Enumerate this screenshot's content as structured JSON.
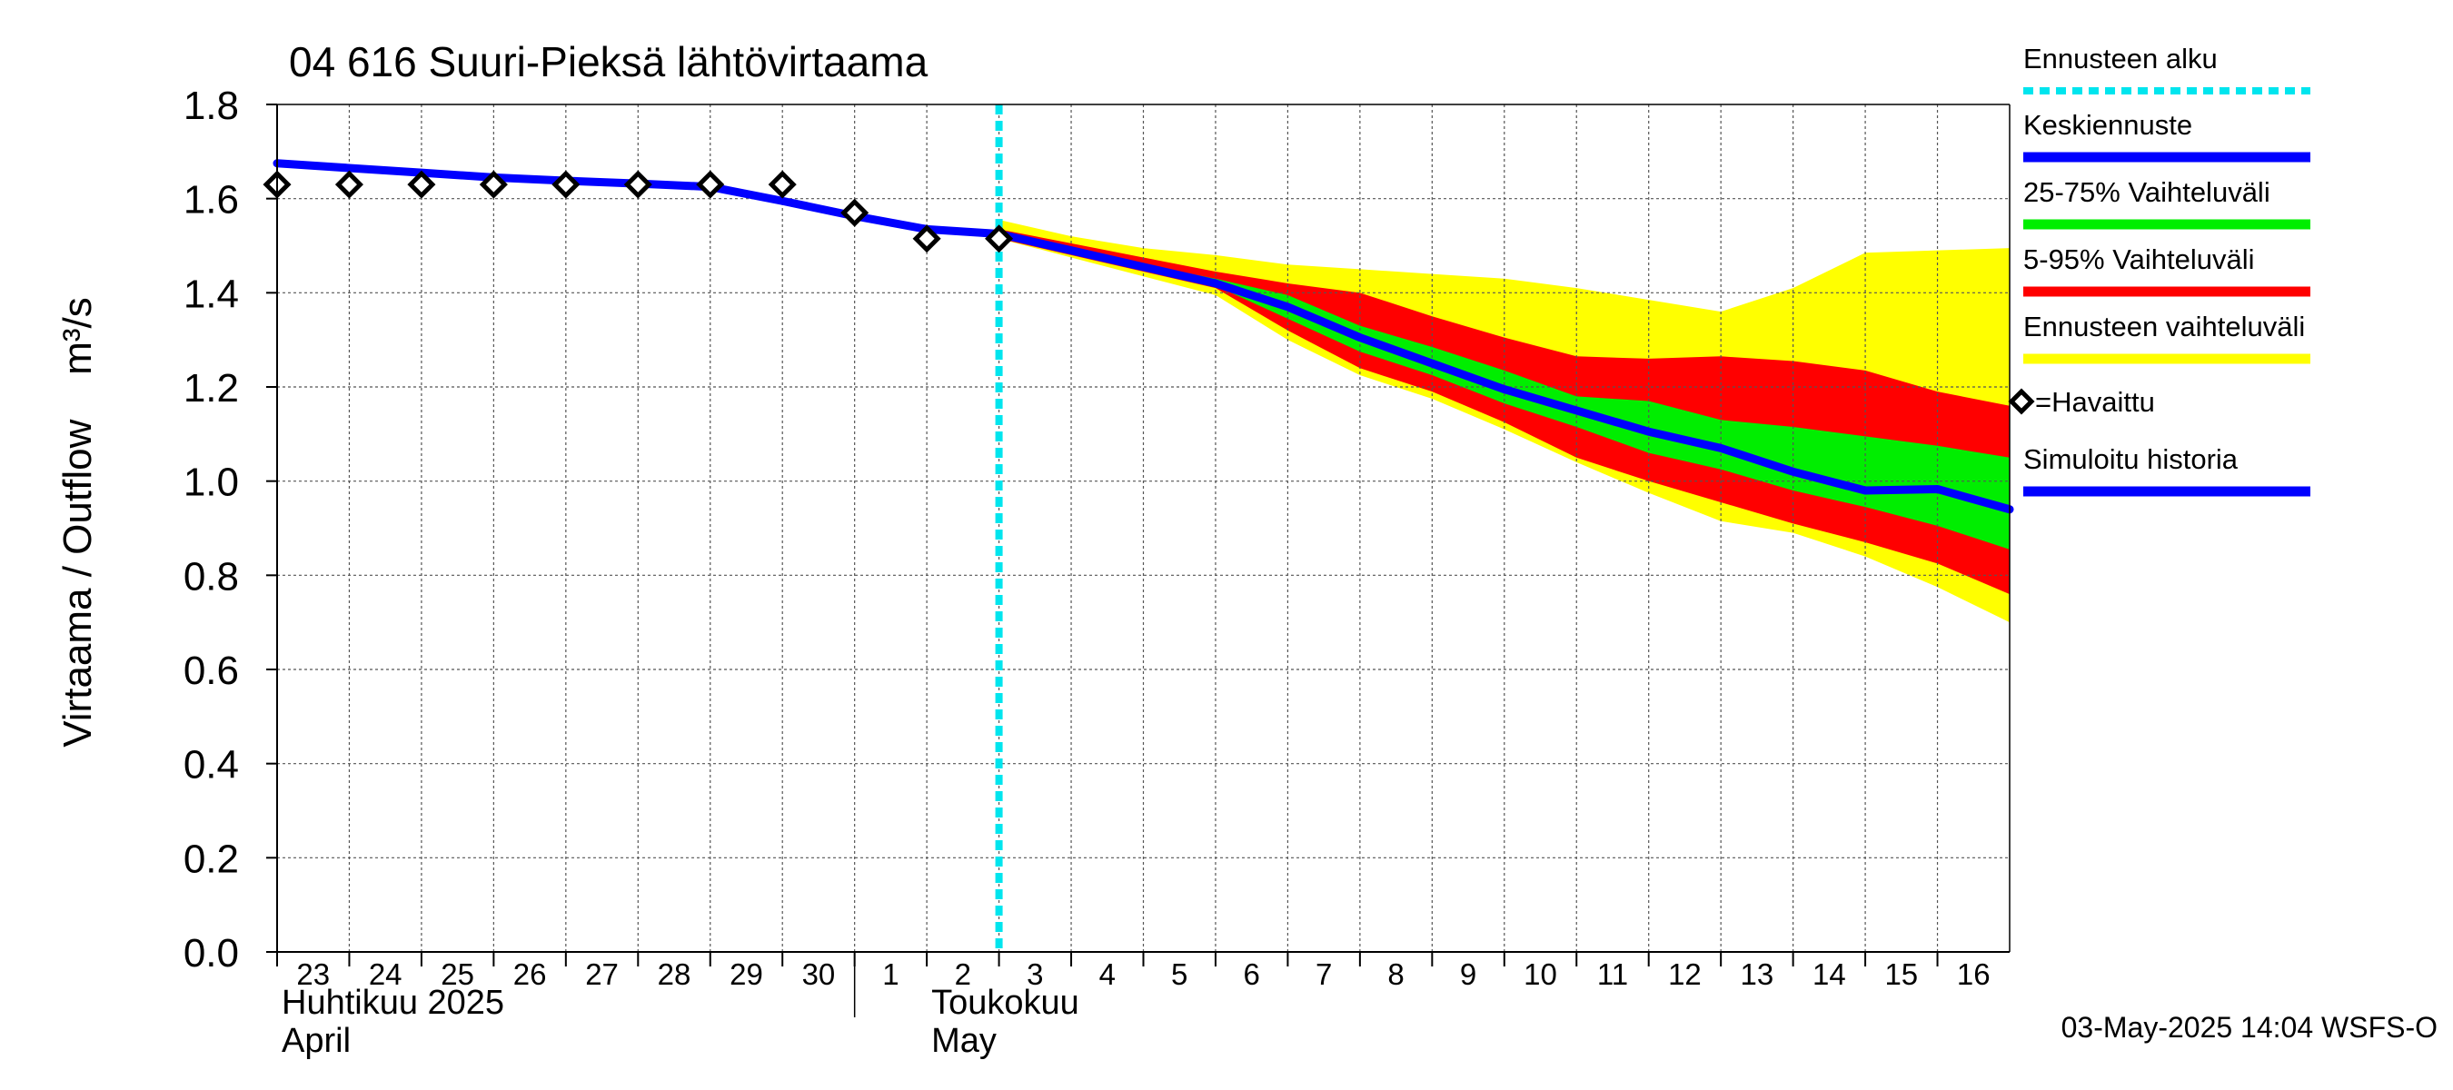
{
  "chart_data": {
    "type": "area",
    "title": "04 616 Suuri-Pieksä lähtövirtaama",
    "ylabel": "Virtaama / Outflow    m³/s",
    "ylim": [
      0.0,
      1.8
    ],
    "y_ticks": [
      "0.0",
      "0.2",
      "0.4",
      "0.6",
      "0.8",
      "1.0",
      "1.2",
      "1.4",
      "1.6",
      "1.8"
    ],
    "x_range_days": [
      "2025-04-23",
      "2025-05-17"
    ],
    "x_ticks": [
      {
        "date": "2025-04-23",
        "label": "23"
      },
      {
        "date": "2025-04-24",
        "label": "24"
      },
      {
        "date": "2025-04-25",
        "label": "25"
      },
      {
        "date": "2025-04-26",
        "label": "26"
      },
      {
        "date": "2025-04-27",
        "label": "27"
      },
      {
        "date": "2025-04-28",
        "label": "28"
      },
      {
        "date": "2025-04-29",
        "label": "29"
      },
      {
        "date": "2025-04-30",
        "label": "30"
      },
      {
        "date": "2025-05-01",
        "label": "1"
      },
      {
        "date": "2025-05-02",
        "label": "2"
      },
      {
        "date": "2025-05-03",
        "label": "3"
      },
      {
        "date": "2025-05-04",
        "label": "4"
      },
      {
        "date": "2025-05-05",
        "label": "5"
      },
      {
        "date": "2025-05-06",
        "label": "6"
      },
      {
        "date": "2025-05-07",
        "label": "7"
      },
      {
        "date": "2025-05-08",
        "label": "8"
      },
      {
        "date": "2025-05-09",
        "label": "9"
      },
      {
        "date": "2025-05-10",
        "label": "10"
      },
      {
        "date": "2025-05-11",
        "label": "11"
      },
      {
        "date": "2025-05-12",
        "label": "12"
      },
      {
        "date": "2025-05-13",
        "label": "13"
      },
      {
        "date": "2025-05-14",
        "label": "14"
      },
      {
        "date": "2025-05-15",
        "label": "15"
      },
      {
        "date": "2025-05-16",
        "label": "16"
      }
    ],
    "month_labels": [
      {
        "date": "2025-04-23",
        "line1": "Huhtikuu  2025",
        "line2": "April"
      },
      {
        "date": "2025-05-02",
        "line1": "Toukokuu",
        "line2": "May"
      }
    ],
    "month_divider_date": "2025-05-01",
    "forecast_start": "2025-05-03",
    "grid": true,
    "legend_position": "right",
    "legend": [
      {
        "label": "Ennusteen alku",
        "color": "#00e5ee",
        "style": "dotted"
      },
      {
        "label": "Keskiennuste",
        "color": "#0000ff",
        "style": "line"
      },
      {
        "label": "25-75% Vaihteluväli",
        "color": "#00ee00",
        "style": "line"
      },
      {
        "label": "5-95% Vaihteluväli",
        "color": "#ff0000",
        "style": "line"
      },
      {
        "label": "Ennusteen vaihteluväli",
        "color": "#ffff00",
        "style": "line"
      },
      {
        "label": "=Havaittu",
        "color": "#000000",
        "style": "marker"
      },
      {
        "label": "Simuloitu historia",
        "color": "#0000ff",
        "style": "line"
      }
    ],
    "series": [
      {
        "kind": "simulated_history",
        "color": "#0000ff",
        "points": [
          [
            "2025-04-23",
            1.675
          ],
          [
            "2025-04-24",
            1.665
          ],
          [
            "2025-04-25",
            1.655
          ],
          [
            "2025-04-26",
            1.645
          ],
          [
            "2025-04-27",
            1.638
          ],
          [
            "2025-04-28",
            1.632
          ],
          [
            "2025-04-29",
            1.625
          ],
          [
            "2025-04-30",
            1.595
          ],
          [
            "2025-05-01",
            1.563
          ],
          [
            "2025-05-02",
            1.535
          ],
          [
            "2025-05-03",
            1.525
          ]
        ]
      },
      {
        "kind": "median_forecast",
        "color": "#0000ff",
        "points": [
          [
            "2025-05-03",
            1.525
          ],
          [
            "2025-05-04",
            1.49
          ],
          [
            "2025-05-05",
            1.455
          ],
          [
            "2025-05-06",
            1.42
          ],
          [
            "2025-05-07",
            1.37
          ],
          [
            "2025-05-08",
            1.305
          ],
          [
            "2025-05-09",
            1.25
          ],
          [
            "2025-05-10",
            1.195
          ],
          [
            "2025-05-11",
            1.15
          ],
          [
            "2025-05-12",
            1.105
          ],
          [
            "2025-05-13",
            1.07
          ],
          [
            "2025-05-14",
            1.02
          ],
          [
            "2025-05-15",
            0.98
          ],
          [
            "2025-05-16",
            0.983
          ],
          [
            "2025-05-17",
            0.94
          ]
        ]
      },
      {
        "kind": "observed",
        "color": "#000000",
        "points": [
          [
            "2025-04-23",
            1.63
          ],
          [
            "2025-04-24",
            1.63
          ],
          [
            "2025-04-25",
            1.63
          ],
          [
            "2025-04-26",
            1.63
          ],
          [
            "2025-04-27",
            1.63
          ],
          [
            "2025-04-28",
            1.63
          ],
          [
            "2025-04-29",
            1.63
          ],
          [
            "2025-04-30",
            1.63
          ],
          [
            "2025-05-01",
            1.57
          ],
          [
            "2025-05-02",
            1.515
          ],
          [
            "2025-05-03",
            1.515
          ]
        ]
      }
    ],
    "bands": [
      {
        "kind": "forecast_range",
        "color": "#ffff00",
        "upper": [
          [
            "2025-05-03",
            1.555
          ],
          [
            "2025-05-04",
            1.52
          ],
          [
            "2025-05-05",
            1.495
          ],
          [
            "2025-05-06",
            1.48
          ],
          [
            "2025-05-07",
            1.46
          ],
          [
            "2025-05-08",
            1.45
          ],
          [
            "2025-05-09",
            1.44
          ],
          [
            "2025-05-10",
            1.43
          ],
          [
            "2025-05-11",
            1.41
          ],
          [
            "2025-05-12",
            1.385
          ],
          [
            "2025-05-13",
            1.36
          ],
          [
            "2025-05-14",
            1.41
          ],
          [
            "2025-05-15",
            1.485
          ],
          [
            "2025-05-16",
            1.49
          ],
          [
            "2025-05-17",
            1.495
          ]
        ],
        "lower": [
          [
            "2025-05-03",
            1.515
          ],
          [
            "2025-05-04",
            1.475
          ],
          [
            "2025-05-05",
            1.435
          ],
          [
            "2025-05-06",
            1.395
          ],
          [
            "2025-05-07",
            1.3
          ],
          [
            "2025-05-08",
            1.225
          ],
          [
            "2025-05-09",
            1.175
          ],
          [
            "2025-05-10",
            1.11
          ],
          [
            "2025-05-11",
            1.04
          ],
          [
            "2025-05-12",
            0.975
          ],
          [
            "2025-05-13",
            0.915
          ],
          [
            "2025-05-14",
            0.89
          ],
          [
            "2025-05-15",
            0.84
          ],
          [
            "2025-05-16",
            0.775
          ],
          [
            "2025-05-17",
            0.7
          ]
        ]
      },
      {
        "kind": "p5_p95",
        "color": "#ff0000",
        "upper": [
          [
            "2025-05-03",
            1.535
          ],
          [
            "2025-05-04",
            1.505
          ],
          [
            "2025-05-05",
            1.475
          ],
          [
            "2025-05-06",
            1.445
          ],
          [
            "2025-05-07",
            1.42
          ],
          [
            "2025-05-08",
            1.4
          ],
          [
            "2025-05-09",
            1.35
          ],
          [
            "2025-05-10",
            1.305
          ],
          [
            "2025-05-11",
            1.265
          ],
          [
            "2025-05-12",
            1.26
          ],
          [
            "2025-05-13",
            1.265
          ],
          [
            "2025-05-14",
            1.255
          ],
          [
            "2025-05-15",
            1.235
          ],
          [
            "2025-05-16",
            1.19
          ],
          [
            "2025-05-17",
            1.16
          ]
        ],
        "lower": [
          [
            "2025-05-03",
            1.515
          ],
          [
            "2025-05-04",
            1.48
          ],
          [
            "2025-05-05",
            1.445
          ],
          [
            "2025-05-06",
            1.41
          ],
          [
            "2025-05-07",
            1.32
          ],
          [
            "2025-05-08",
            1.24
          ],
          [
            "2025-05-09",
            1.19
          ],
          [
            "2025-05-10",
            1.125
          ],
          [
            "2025-05-11",
            1.05
          ],
          [
            "2025-05-12",
            1.0
          ],
          [
            "2025-05-13",
            0.955
          ],
          [
            "2025-05-14",
            0.91
          ],
          [
            "2025-05-15",
            0.87
          ],
          [
            "2025-05-16",
            0.825
          ],
          [
            "2025-05-17",
            0.76
          ]
        ]
      },
      {
        "kind": "p25_p75",
        "color": "#00ee00",
        "upper": [
          [
            "2025-05-03",
            1.53
          ],
          [
            "2025-05-04",
            1.495
          ],
          [
            "2025-05-05",
            1.46
          ],
          [
            "2025-05-06",
            1.43
          ],
          [
            "2025-05-07",
            1.395
          ],
          [
            "2025-05-08",
            1.33
          ],
          [
            "2025-05-09",
            1.285
          ],
          [
            "2025-05-10",
            1.235
          ],
          [
            "2025-05-11",
            1.18
          ],
          [
            "2025-05-12",
            1.17
          ],
          [
            "2025-05-13",
            1.13
          ],
          [
            "2025-05-14",
            1.115
          ],
          [
            "2025-05-15",
            1.095
          ],
          [
            "2025-05-16",
            1.075
          ],
          [
            "2025-05-17",
            1.05
          ]
        ],
        "lower": [
          [
            "2025-05-03",
            1.52
          ],
          [
            "2025-05-04",
            1.485
          ],
          [
            "2025-05-05",
            1.45
          ],
          [
            "2025-05-06",
            1.415
          ],
          [
            "2025-05-07",
            1.345
          ],
          [
            "2025-05-08",
            1.275
          ],
          [
            "2025-05-09",
            1.225
          ],
          [
            "2025-05-10",
            1.165
          ],
          [
            "2025-05-11",
            1.115
          ],
          [
            "2025-05-12",
            1.06
          ],
          [
            "2025-05-13",
            1.025
          ],
          [
            "2025-05-14",
            0.98
          ],
          [
            "2025-05-15",
            0.945
          ],
          [
            "2025-05-16",
            0.905
          ],
          [
            "2025-05-17",
            0.855
          ]
        ]
      }
    ],
    "footer": "03-May-2025 14:04 WSFS-O"
  }
}
